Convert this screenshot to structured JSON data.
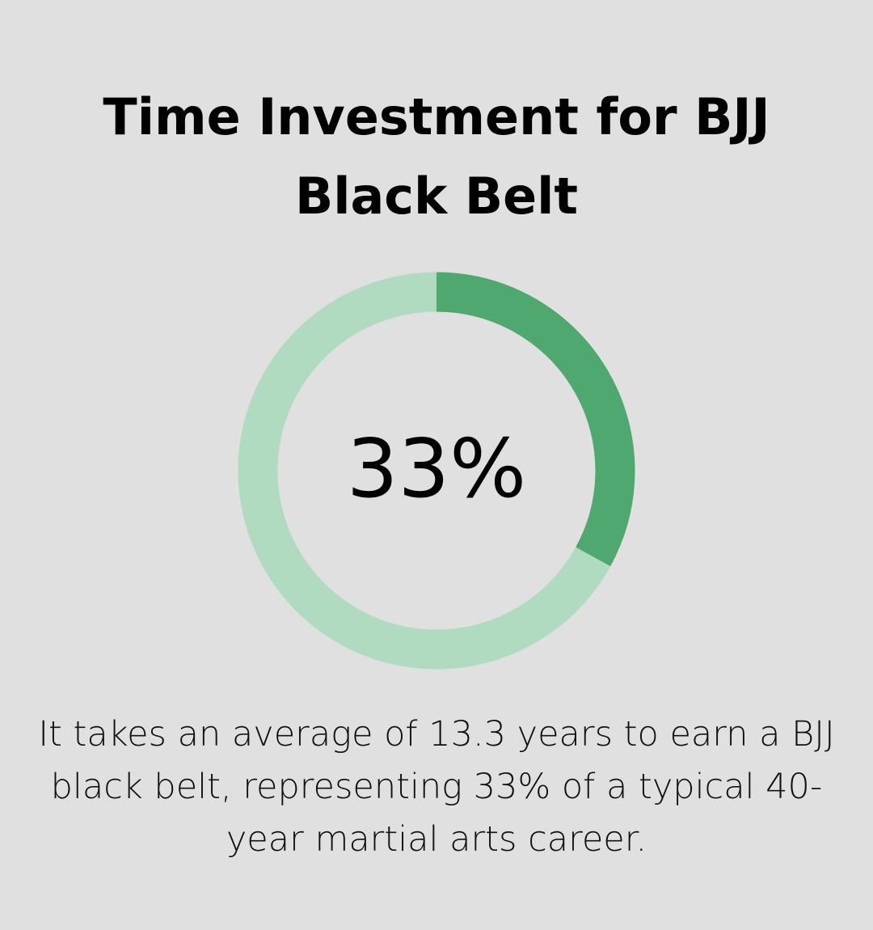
{
  "chart_data": {
    "type": "pie",
    "variant": "donut",
    "title": "Time Investment for BJJ Black Belt",
    "center_label": "33%",
    "values": [
      33,
      67
    ],
    "colors": [
      "#4fa86d",
      "#b0dbc1"
    ],
    "caption": "It takes an average of 13.3 years to earn a BJJ black belt, representing 33% of a typical 40-year martial arts career."
  },
  "colors": {
    "background": "#dfe0df"
  }
}
